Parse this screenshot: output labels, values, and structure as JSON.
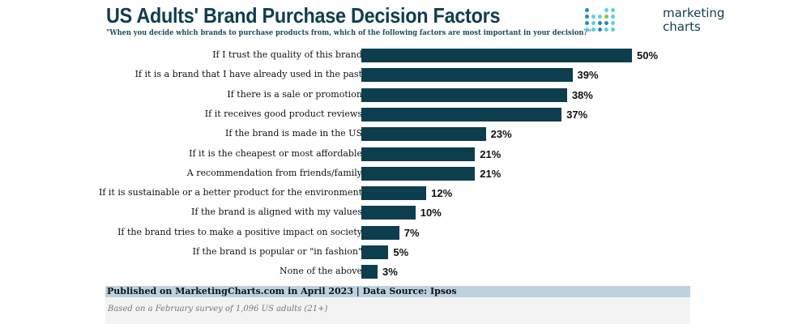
{
  "header": {
    "title": "US Adults' Brand Purchase Decision Factors",
    "subtitle": "\"When you decide which brands to purchase products from, which of the following factors are most important in your decision?\""
  },
  "logo": {
    "text_line1": "marketing",
    "text_line2": "charts",
    "colors": [
      "#1e8fb3",
      "#5fd0dc",
      "#8bc53f"
    ]
  },
  "chart_data": {
    "type": "bar",
    "orientation": "horizontal",
    "categories": [
      "If I trust the quality of this brand",
      "If it is a brand that I have already used in the past",
      "If there is a sale or promotion",
      "If it receives good product reviews",
      "If the brand is made in the US",
      "If it is the cheapest or most affordable",
      "A recommendation from friends/family",
      "If it is sustainable or a better product for the environment",
      "If the brand is aligned with my values",
      "If the brand tries to make a positive impact on society",
      "If the brand is popular or \"in fashion\"",
      "None of the above"
    ],
    "values": [
      50,
      39,
      38,
      37,
      23,
      21,
      21,
      12,
      10,
      7,
      5,
      3
    ],
    "value_labels": [
      "50%",
      "39%",
      "38%",
      "37%",
      "23%",
      "21%",
      "21%",
      "12%",
      "10%",
      "7%",
      "5%",
      "3%"
    ],
    "bar_color": "#0d3e4e",
    "grid": false,
    "xlim": [
      0,
      50
    ]
  },
  "footer": {
    "published": "Published on MarketingCharts.com in April 2023 | Data Source: Ipsos",
    "note": "Based on a February survey of 1,096 US adults (21+)"
  }
}
